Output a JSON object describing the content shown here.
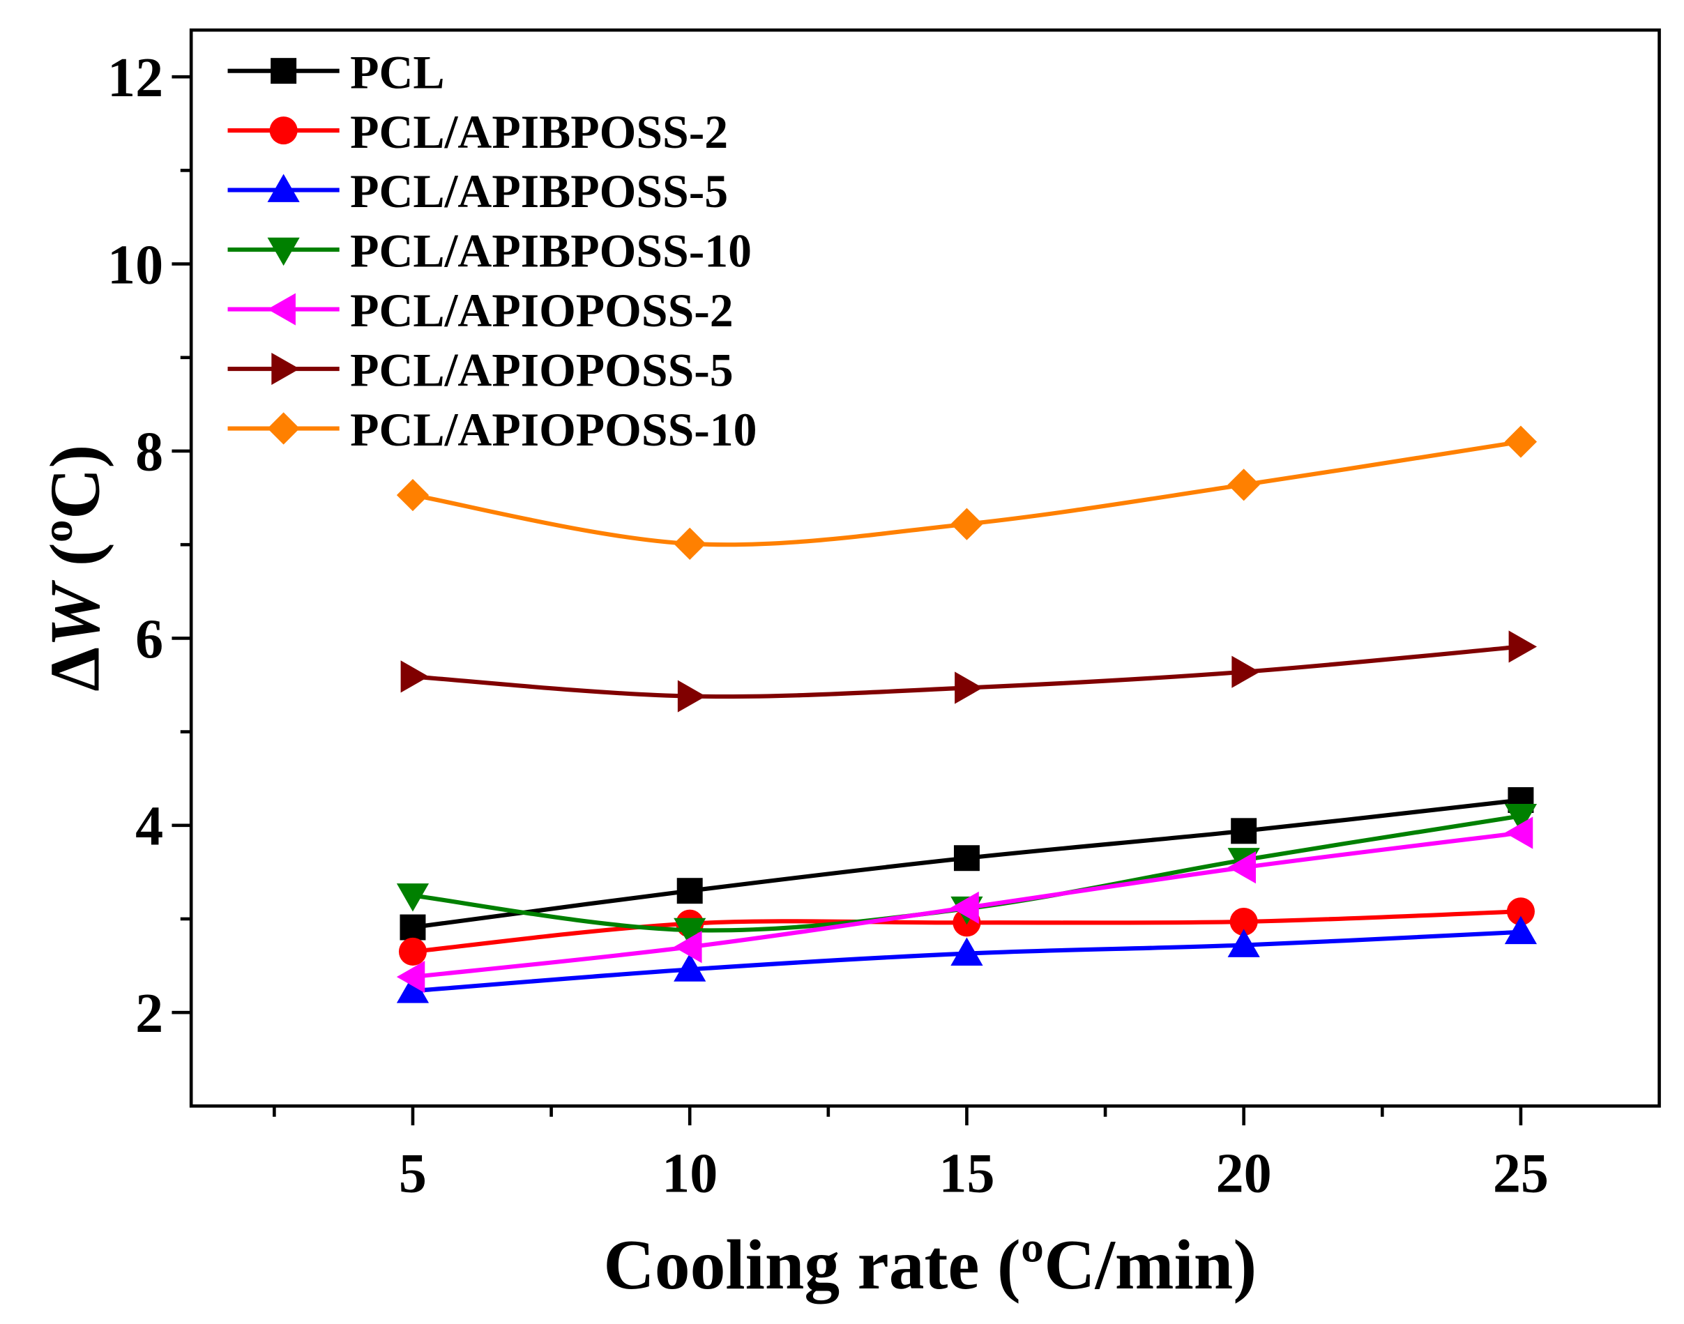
{
  "chart_data": {
    "type": "line",
    "title": "",
    "xlabel": "Cooling rate (ºC/min)",
    "ylabel": {
      "delta": "Δ",
      "var": "W",
      "unit": " (ºC)"
    },
    "xlim": [
      1,
      27.5
    ],
    "ylim": [
      1,
      12.5
    ],
    "xticks": [
      5,
      10,
      15,
      20,
      25
    ],
    "xminor": [
      2.5,
      7.5,
      12.5,
      17.5,
      22.5,
      27.5
    ],
    "yticks": [
      2,
      4,
      6,
      8,
      10,
      12
    ],
    "yminor": [
      1,
      3,
      5,
      7,
      9,
      11
    ],
    "grid": false,
    "legend_position": "top-left",
    "x": [
      5,
      10,
      15,
      20,
      25
    ],
    "series": [
      {
        "name": "PCL",
        "color": "#000000",
        "marker": "square",
        "values": [
          2.91,
          3.3,
          3.65,
          3.94,
          4.27
        ]
      },
      {
        "name": "PCL/APIBPOSS-2",
        "color": "#ff0000",
        "marker": "circle",
        "values": [
          2.65,
          2.95,
          2.96,
          2.97,
          3.08
        ]
      },
      {
        "name": "PCL/APIBPOSS-5",
        "color": "#0000ff",
        "marker": "triangle-up",
        "values": [
          2.23,
          2.46,
          2.63,
          2.72,
          2.86
        ]
      },
      {
        "name": "PCL/APIBPOSS-10",
        "color": "#008000",
        "marker": "triangle-down",
        "values": [
          3.25,
          2.88,
          3.11,
          3.63,
          4.1
        ]
      },
      {
        "name": "PCL/APIOPOSS-2",
        "color": "#ff00ff",
        "marker": "triangle-left",
        "values": [
          2.38,
          2.7,
          3.12,
          3.55,
          3.92
        ]
      },
      {
        "name": "PCL/APIOPOSS-5",
        "color": "#800000",
        "marker": "triangle-right",
        "values": [
          5.59,
          5.38,
          5.47,
          5.64,
          5.91
        ]
      },
      {
        "name": "PCL/APIOPOSS-10",
        "color": "#ff8000",
        "marker": "diamond",
        "values": [
          7.53,
          7.01,
          7.22,
          7.64,
          8.1
        ]
      }
    ]
  }
}
